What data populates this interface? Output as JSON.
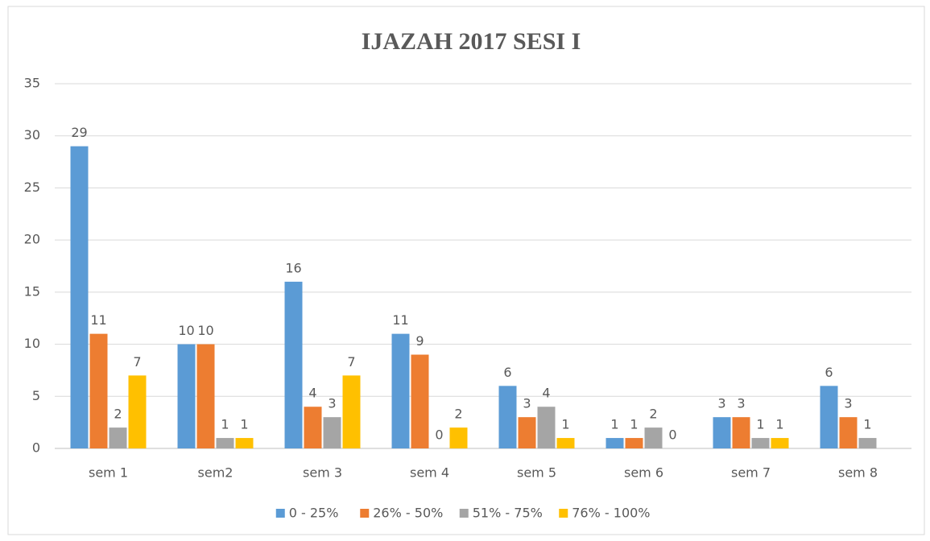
{
  "chart_data": {
    "type": "bar",
    "title": "IJAZAH 2017 SESI I",
    "categories": [
      "sem 1",
      "sem2",
      "sem 3",
      "sem 4",
      "sem 5",
      "sem 6",
      "sem 7",
      "sem 8"
    ],
    "series": [
      {
        "name": "0 - 25%",
        "color": "#5b9bd5",
        "values": [
          29,
          10,
          16,
          11,
          6,
          1,
          3,
          6
        ]
      },
      {
        "name": "26% - 50%",
        "color": "#ed7d31",
        "values": [
          11,
          10,
          4,
          9,
          3,
          1,
          3,
          3
        ]
      },
      {
        "name": "51% - 75%",
        "color": "#a5a5a5",
        "values": [
          2,
          1,
          3,
          0,
          4,
          2,
          1,
          1
        ]
      },
      {
        "name": "76% - 100%",
        "color": "#ffc000",
        "values": [
          7,
          1,
          7,
          2,
          1,
          0,
          1,
          null
        ]
      }
    ],
    "ylim": [
      0,
      35
    ],
    "yticks": [
      0,
      5,
      10,
      15,
      20,
      25,
      30,
      35
    ],
    "grid": true,
    "legend": "bottom"
  }
}
